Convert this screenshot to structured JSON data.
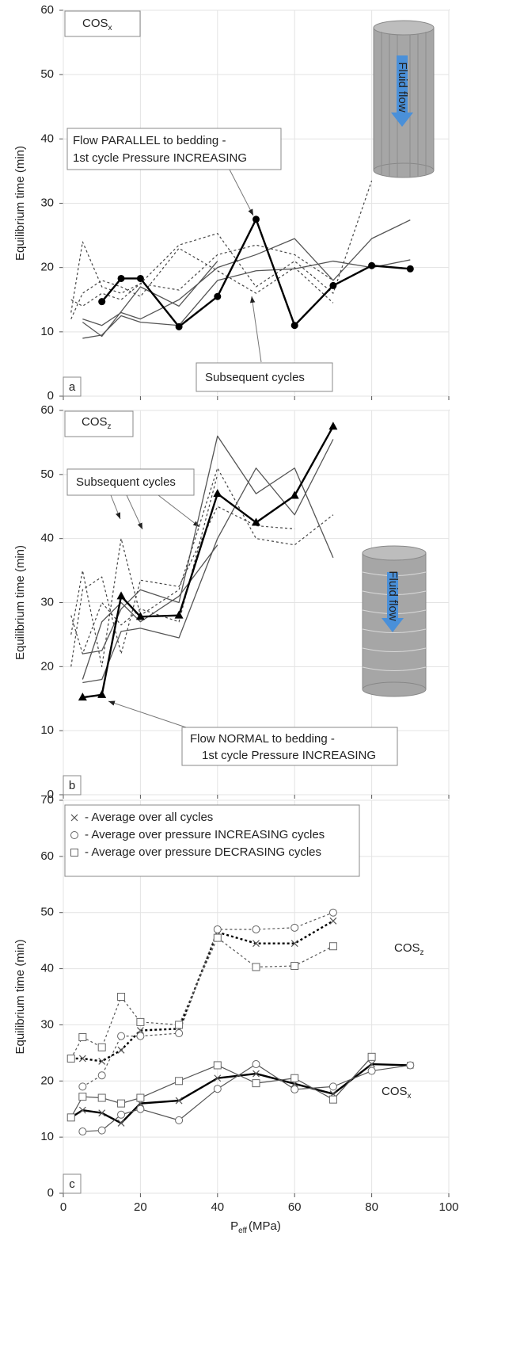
{
  "chart_data": [
    {
      "type": "line",
      "panel": "a",
      "label": {
        "text": "COS",
        "sub": "x"
      },
      "y_label": "Equilibrium time (min)",
      "xlim": [
        0,
        100
      ],
      "xticks": [
        0,
        20,
        40,
        60,
        80,
        100
      ],
      "ylim": [
        0,
        60
      ],
      "yticks": [
        0,
        10,
        20,
        30,
        40,
        50,
        60
      ],
      "grid": true,
      "annotations": [
        "Flow PARALLEL to bedding -",
        "1st cycle Pressure INCREASING",
        "Subsequent cycles"
      ],
      "inset": "Fluid flow",
      "series": [
        {
          "color": "#555555",
          "style": "solid",
          "width": 1.3,
          "marker": "none",
          "x": [
            5,
            10,
            15,
            20,
            30,
            40,
            50,
            60,
            70,
            80,
            90
          ],
          "values": [
            12,
            11,
            13,
            12,
            15,
            20,
            22,
            24.5,
            18,
            24.5,
            27.4
          ]
        },
        {
          "color": "#555555",
          "style": "solid",
          "width": 1.3,
          "marker": "none",
          "x": [
            5,
            10,
            15,
            20,
            30,
            40,
            50,
            60,
            70,
            80,
            90
          ],
          "values": [
            9,
            9.5,
            12.5,
            11.5,
            11,
            18,
            19.5,
            19.8,
            21,
            20,
            21.2
          ]
        },
        {
          "color": "#555555",
          "style": "solid",
          "width": 1.3,
          "marker": "none",
          "x": [
            5,
            10,
            20,
            30,
            40
          ],
          "values": [
            11.5,
            9.3,
            17,
            14,
            21
          ]
        },
        {
          "color": "#444444",
          "style": "dotted",
          "width": 1.2,
          "marker": "none",
          "x": [
            2,
            5,
            10,
            15,
            20,
            30,
            40,
            50,
            60,
            70,
            80
          ],
          "values": [
            13,
            24,
            17,
            16,
            17.5,
            23.5,
            25.3,
            17,
            21,
            16,
            33.5
          ]
        },
        {
          "color": "#444444",
          "style": "dotted",
          "width": 1.2,
          "marker": "none",
          "x": [
            2,
            5,
            10,
            15,
            20,
            30,
            40,
            50,
            60,
            70
          ],
          "values": [
            12,
            16,
            18,
            17,
            15.5,
            23,
            19.5,
            16,
            20,
            14.5
          ]
        },
        {
          "color": "#444444",
          "style": "dotted",
          "width": 1.2,
          "marker": "none",
          "x": [
            2,
            5,
            10,
            15,
            20,
            30,
            40,
            50,
            60,
            70
          ],
          "values": [
            15,
            14,
            16,
            15,
            17.5,
            16.5,
            22,
            23.5,
            22,
            18
          ]
        },
        {
          "color": "#000000",
          "style": "solid",
          "width": 2.4,
          "marker": "dot",
          "x": [
            10,
            15,
            20,
            30,
            40,
            50,
            60,
            70,
            80,
            90
          ],
          "values": [
            14.7,
            18.3,
            18.3,
            10.8,
            15.5,
            27.5,
            11,
            17.2,
            20.3,
            19.8
          ]
        }
      ]
    },
    {
      "type": "line",
      "panel": "b",
      "label": {
        "text": "COS",
        "sub": "z"
      },
      "y_label": "Equilibrium time (min)",
      "xlim": [
        0,
        100
      ],
      "xticks": [
        0,
        20,
        40,
        60,
        80,
        100
      ],
      "ylim": [
        0,
        60
      ],
      "yticks": [
        0,
        10,
        20,
        30,
        40,
        50,
        60
      ],
      "grid": true,
      "annotations": [
        "Subsequent cycles",
        "Flow NORMAL to bedding -",
        "1st cycle Pressure INCREASING"
      ],
      "inset": "Fluid flow",
      "series": [
        {
          "color": "#555555",
          "style": "solid",
          "width": 1.3,
          "marker": "none",
          "x": [
            5,
            10,
            15,
            20,
            30,
            40,
            50,
            60,
            70
          ],
          "values": [
            22,
            22.5,
            29,
            32,
            30,
            56,
            47,
            51,
            37
          ]
        },
        {
          "color": "#555555",
          "style": "solid",
          "width": 1.3,
          "marker": "none",
          "x": [
            5,
            10,
            15,
            20,
            30,
            40,
            50,
            60,
            70
          ],
          "values": [
            17.5,
            18,
            25.5,
            26,
            24.5,
            40,
            51,
            43.7,
            55.5
          ]
        },
        {
          "color": "#555555",
          "style": "solid",
          "width": 1.3,
          "marker": "none",
          "x": [
            5,
            10,
            15,
            20,
            30,
            40
          ],
          "values": [
            18,
            27,
            30,
            27,
            31,
            39
          ]
        },
        {
          "color": "#444444",
          "style": "dotted",
          "width": 1.2,
          "marker": "none",
          "x": [
            2,
            5,
            10,
            15,
            20,
            30,
            40,
            50,
            60,
            70
          ],
          "values": [
            25,
            35,
            20,
            40,
            28,
            32,
            51,
            40,
            39,
            43.7
          ]
        },
        {
          "color": "#444444",
          "style": "dotted",
          "width": 1.2,
          "marker": "none",
          "x": [
            2,
            5,
            10,
            15,
            20,
            30,
            40,
            50,
            60
          ],
          "values": [
            20,
            32,
            34,
            22,
            33.5,
            32.5,
            45,
            42,
            41.5
          ]
        },
        {
          "color": "#444444",
          "style": "dotted",
          "width": 1.2,
          "marker": "none",
          "x": [
            2,
            5,
            10,
            15,
            20,
            30,
            40
          ],
          "values": [
            28,
            22,
            30,
            26.5,
            29,
            27,
            50
          ]
        },
        {
          "color": "#000000",
          "style": "solid",
          "width": 2.4,
          "marker": "triangle",
          "x": [
            5,
            10,
            15,
            20,
            30,
            40,
            50,
            60,
            70
          ],
          "values": [
            15.2,
            15.6,
            31,
            27.8,
            28,
            47,
            42.5,
            46.7,
            57.5
          ]
        }
      ]
    },
    {
      "type": "line",
      "panel": "c",
      "y_label": "Equilibrium time (min)",
      "x_label": {
        "text": "P",
        "sub": "eff",
        "unit": "(MPa)"
      },
      "xlim": [
        0,
        100
      ],
      "xticks": [
        0,
        20,
        40,
        60,
        80,
        100
      ],
      "ylim": [
        0,
        70
      ],
      "yticks": [
        0,
        10,
        20,
        30,
        40,
        50,
        60,
        70
      ],
      "grid": true,
      "legend": [
        {
          "label": "- Average over all cycles",
          "marker": "cross"
        },
        {
          "label": "- Average over pressure INCREASING cycles",
          "marker": "circle"
        },
        {
          "label": "- Average over pressure DECRASING cycles",
          "marker": "square"
        }
      ],
      "curve_labels": [
        {
          "text": "COS",
          "sub": "z"
        },
        {
          "text": "COS",
          "sub": "x"
        }
      ],
      "series": [
        {
          "color": "#000000",
          "style": "dotted",
          "width": 2.4,
          "marker": "cross",
          "x": [
            2,
            5,
            10,
            15,
            20,
            30,
            40,
            50,
            60,
            70
          ],
          "values": [
            24,
            24,
            23.5,
            25.5,
            29,
            29.3,
            46.5,
            44.5,
            44.5,
            48.5
          ]
        },
        {
          "color": "#555555",
          "style": "dotted",
          "width": 1.2,
          "marker": "circle",
          "x": [
            5,
            10,
            15,
            20,
            30,
            40,
            50,
            60,
            70
          ],
          "values": [
            19,
            21,
            28,
            28,
            28.5,
            47,
            47,
            47.3,
            50
          ]
        },
        {
          "color": "#555555",
          "style": "dotted",
          "width": 1.2,
          "marker": "square",
          "x": [
            2,
            5,
            10,
            15,
            20,
            30,
            40,
            50,
            60,
            70
          ],
          "values": [
            24,
            27.8,
            26,
            35,
            30.5,
            30,
            45.5,
            40.3,
            40.5,
            44
          ]
        },
        {
          "color": "#000000",
          "style": "solid",
          "width": 2.4,
          "marker": "cross",
          "x": [
            2,
            5,
            10,
            15,
            20,
            30,
            40,
            50,
            60,
            70,
            80,
            90
          ],
          "values": [
            13.5,
            14.8,
            14.3,
            12.5,
            16,
            16.5,
            20.5,
            21.3,
            19.5,
            17.7,
            23,
            22.8
          ]
        },
        {
          "color": "#555555",
          "style": "solid",
          "width": 1.2,
          "marker": "circle",
          "x": [
            5,
            10,
            15,
            20,
            30,
            40,
            50,
            60,
            70,
            80,
            90
          ],
          "values": [
            11,
            11.2,
            14,
            15,
            13,
            18.6,
            23,
            18.5,
            19,
            21.8,
            22.8
          ]
        },
        {
          "color": "#555555",
          "style": "solid",
          "width": 1.2,
          "marker": "square",
          "x": [
            2,
            5,
            10,
            15,
            20,
            30,
            40,
            50,
            60,
            70,
            80
          ],
          "values": [
            13.5,
            17.2,
            17,
            16,
            17,
            20,
            22.8,
            19.6,
            20.5,
            16.7,
            24.3
          ]
        }
      ]
    }
  ]
}
